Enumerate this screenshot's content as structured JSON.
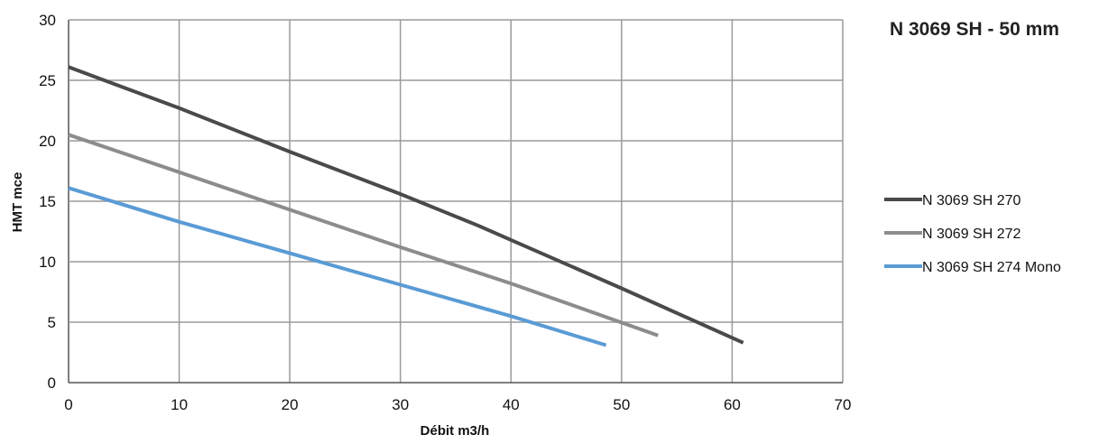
{
  "chart_data": {
    "type": "line",
    "title": "N 3069 SH - 50 mm",
    "xlabel": "Débit m3/h",
    "ylabel": "HMT mce",
    "xlim": [
      0,
      70
    ],
    "ylim": [
      0,
      30
    ],
    "x_ticks": [
      "0",
      "10",
      "20",
      "30",
      "40",
      "50",
      "60",
      "70"
    ],
    "y_ticks": [
      "0",
      "5",
      "10",
      "15",
      "20",
      "25",
      "30"
    ],
    "grid": true,
    "legend_position": "right",
    "series": [
      {
        "name": "N 3069 SH 270",
        "color": "#4a4a4a",
        "points": [
          [
            0,
            26.1
          ],
          [
            10,
            22.7
          ],
          [
            20,
            19.1
          ],
          [
            30,
            15.6
          ],
          [
            37,
            13.0
          ],
          [
            40,
            11.8
          ],
          [
            50,
            7.8
          ],
          [
            61,
            3.3
          ]
        ]
      },
      {
        "name": "N 3069 SH 272",
        "color": "#8c8c8c",
        "points": [
          [
            0,
            20.5
          ],
          [
            10,
            17.4
          ],
          [
            20,
            14.3
          ],
          [
            30,
            11.2
          ],
          [
            40,
            8.2
          ],
          [
            53.3,
            3.9
          ]
        ]
      },
      {
        "name": "N 3069 SH 274 Mono",
        "color": "#5a9bd5",
        "points": [
          [
            0,
            16.1
          ],
          [
            10,
            13.3
          ],
          [
            20,
            10.7
          ],
          [
            30,
            8.1
          ],
          [
            40,
            5.5
          ],
          [
            48.6,
            3.1
          ]
        ]
      }
    ]
  }
}
